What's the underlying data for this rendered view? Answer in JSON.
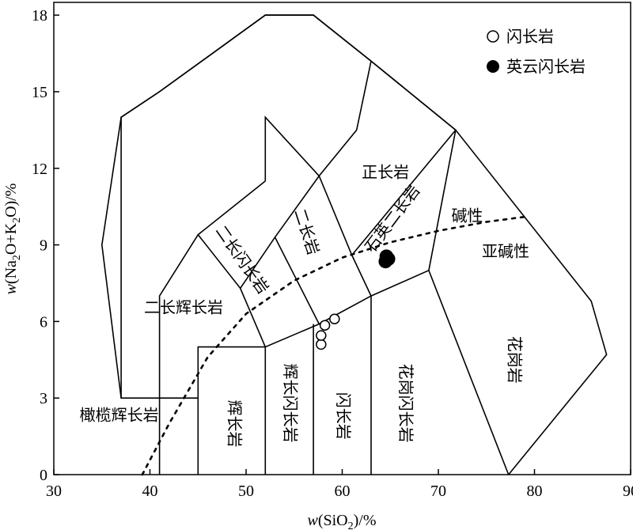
{
  "chart_data": {
    "type": "scatter",
    "xlabel": {
      "italic": "w",
      "main": "(SiO",
      "sub": "2",
      "tail": ")/%"
    },
    "ylabel": {
      "italic": "w",
      "parts": [
        "(Na",
        "2",
        "O+K",
        "2",
        "O)/%"
      ]
    },
    "xlim": [
      30,
      90
    ],
    "ylim": [
      0,
      18.5
    ],
    "x_ticks": [
      30,
      40,
      50,
      60,
      70,
      80,
      90
    ],
    "y_ticks": [
      0,
      3,
      6,
      9,
      12,
      15,
      18
    ],
    "grid": false,
    "legend_position": "top-right",
    "series": [
      {
        "name": "闪长岩",
        "marker": "open-circle",
        "points": [
          [
            57.8,
            5.1
          ],
          [
            57.8,
            5.45
          ],
          [
            58.2,
            5.85
          ],
          [
            59.2,
            6.1
          ]
        ]
      },
      {
        "name": "英云闪长岩",
        "marker": "filled-circle",
        "points": [
          [
            64.5,
            8.35
          ],
          [
            64.8,
            8.45
          ],
          [
            64.6,
            8.55
          ]
        ]
      }
    ],
    "field_labels": [
      {
        "text": "正长岩",
        "x": 64.5,
        "y": 11.8,
        "rotate": 0
      },
      {
        "text": "石英二长岩",
        "x": 65.3,
        "y": 10.0,
        "rotate": -53
      },
      {
        "text": "碱性",
        "x": 73.0,
        "y": 10.1,
        "rotate": 0
      },
      {
        "text": "亚碱性",
        "x": 77.0,
        "y": 8.7,
        "rotate": 0
      },
      {
        "text": "二长闪长岩",
        "x": 49.5,
        "y": 8.4,
        "rotate": 55
      },
      {
        "text": "二长岩",
        "x": 56.2,
        "y": 9.5,
        "rotate": 72
      },
      {
        "text": "二长辉长岩",
        "x": 43.5,
        "y": 6.5,
        "rotate": 0
      },
      {
        "text": "橄榄辉长岩",
        "x": 36.8,
        "y": 2.3,
        "rotate": 0
      },
      {
        "text": "辉长岩",
        "x": 48.7,
        "y": 2.0,
        "rotate": 90
      },
      {
        "text": "辉长闪长岩",
        "x": 54.5,
        "y": 2.8,
        "rotate": 90
      },
      {
        "text": "闪长岩",
        "x": 60.0,
        "y": 2.3,
        "rotate": 90
      },
      {
        "text": "花岗闪长岩",
        "x": 66.5,
        "y": 2.8,
        "rotate": 90
      },
      {
        "text": "花岗岩",
        "x": 77.8,
        "y": 4.5,
        "rotate": 90
      }
    ],
    "field_boundaries": [
      [
        [
          37,
          3
        ],
        [
          37,
          14
        ],
        [
          41,
          15
        ],
        [
          52,
          18
        ],
        [
          57,
          18
        ],
        [
          63,
          16.2
        ],
        [
          71.8,
          13.5
        ],
        [
          85.9,
          6.8
        ],
        [
          87.5,
          4.7
        ],
        [
          77.3,
          0
        ]
      ],
      [
        [
          45,
          3
        ],
        [
          37,
          3
        ],
        [
          35,
          9
        ],
        [
          37,
          14
        ],
        [
          41,
          15
        ],
        [
          52,
          18
        ],
        [
          57,
          18
        ],
        [
          63,
          16.2
        ],
        [
          71.8,
          13.5
        ]
      ],
      [
        [
          41,
          0
        ],
        [
          41,
          7
        ],
        [
          45,
          9.4
        ],
        [
          52,
          11.5
        ]
      ],
      [
        [
          45,
          0
        ],
        [
          45,
          5
        ],
        [
          52,
          5
        ],
        [
          57.6,
          5.9
        ],
        [
          63,
          7
        ],
        [
          69,
          8
        ],
        [
          77.3,
          0
        ]
      ],
      [
        [
          52,
          0
        ],
        [
          52,
          5
        ]
      ],
      [
        [
          57,
          0
        ],
        [
          57,
          5.9
        ]
      ],
      [
        [
          63,
          0
        ],
        [
          63,
          7
        ]
      ],
      [
        [
          45,
          9.4
        ],
        [
          49.4,
          7.3
        ],
        [
          52,
          5
        ]
      ],
      [
        [
          49.4,
          7.3
        ],
        [
          53,
          9.3
        ],
        [
          57.6,
          11.7
        ],
        [
          61.5,
          13.5
        ],
        [
          63,
          16.2
        ]
      ],
      [
        [
          52,
          11.5
        ],
        [
          52,
          14
        ],
        [
          57.6,
          11.7
        ]
      ],
      [
        [
          53,
          9.3
        ],
        [
          57.6,
          5.9
        ]
      ],
      [
        [
          57.6,
          11.7
        ],
        [
          61,
          8.6
        ],
        [
          63,
          7
        ]
      ],
      [
        [
          61,
          8.6
        ],
        [
          71.8,
          13.5
        ],
        [
          69,
          8
        ]
      ]
    ],
    "alkaline_divider": [
      [
        39.2,
        0
      ],
      [
        42,
        2
      ],
      [
        46,
        4.6
      ],
      [
        50,
        6.3
      ],
      [
        55,
        7.6
      ],
      [
        60,
        8.5
      ],
      [
        65,
        9.1
      ],
      [
        70,
        9.55
      ],
      [
        75,
        9.9
      ],
      [
        79,
        10.1
      ]
    ]
  }
}
